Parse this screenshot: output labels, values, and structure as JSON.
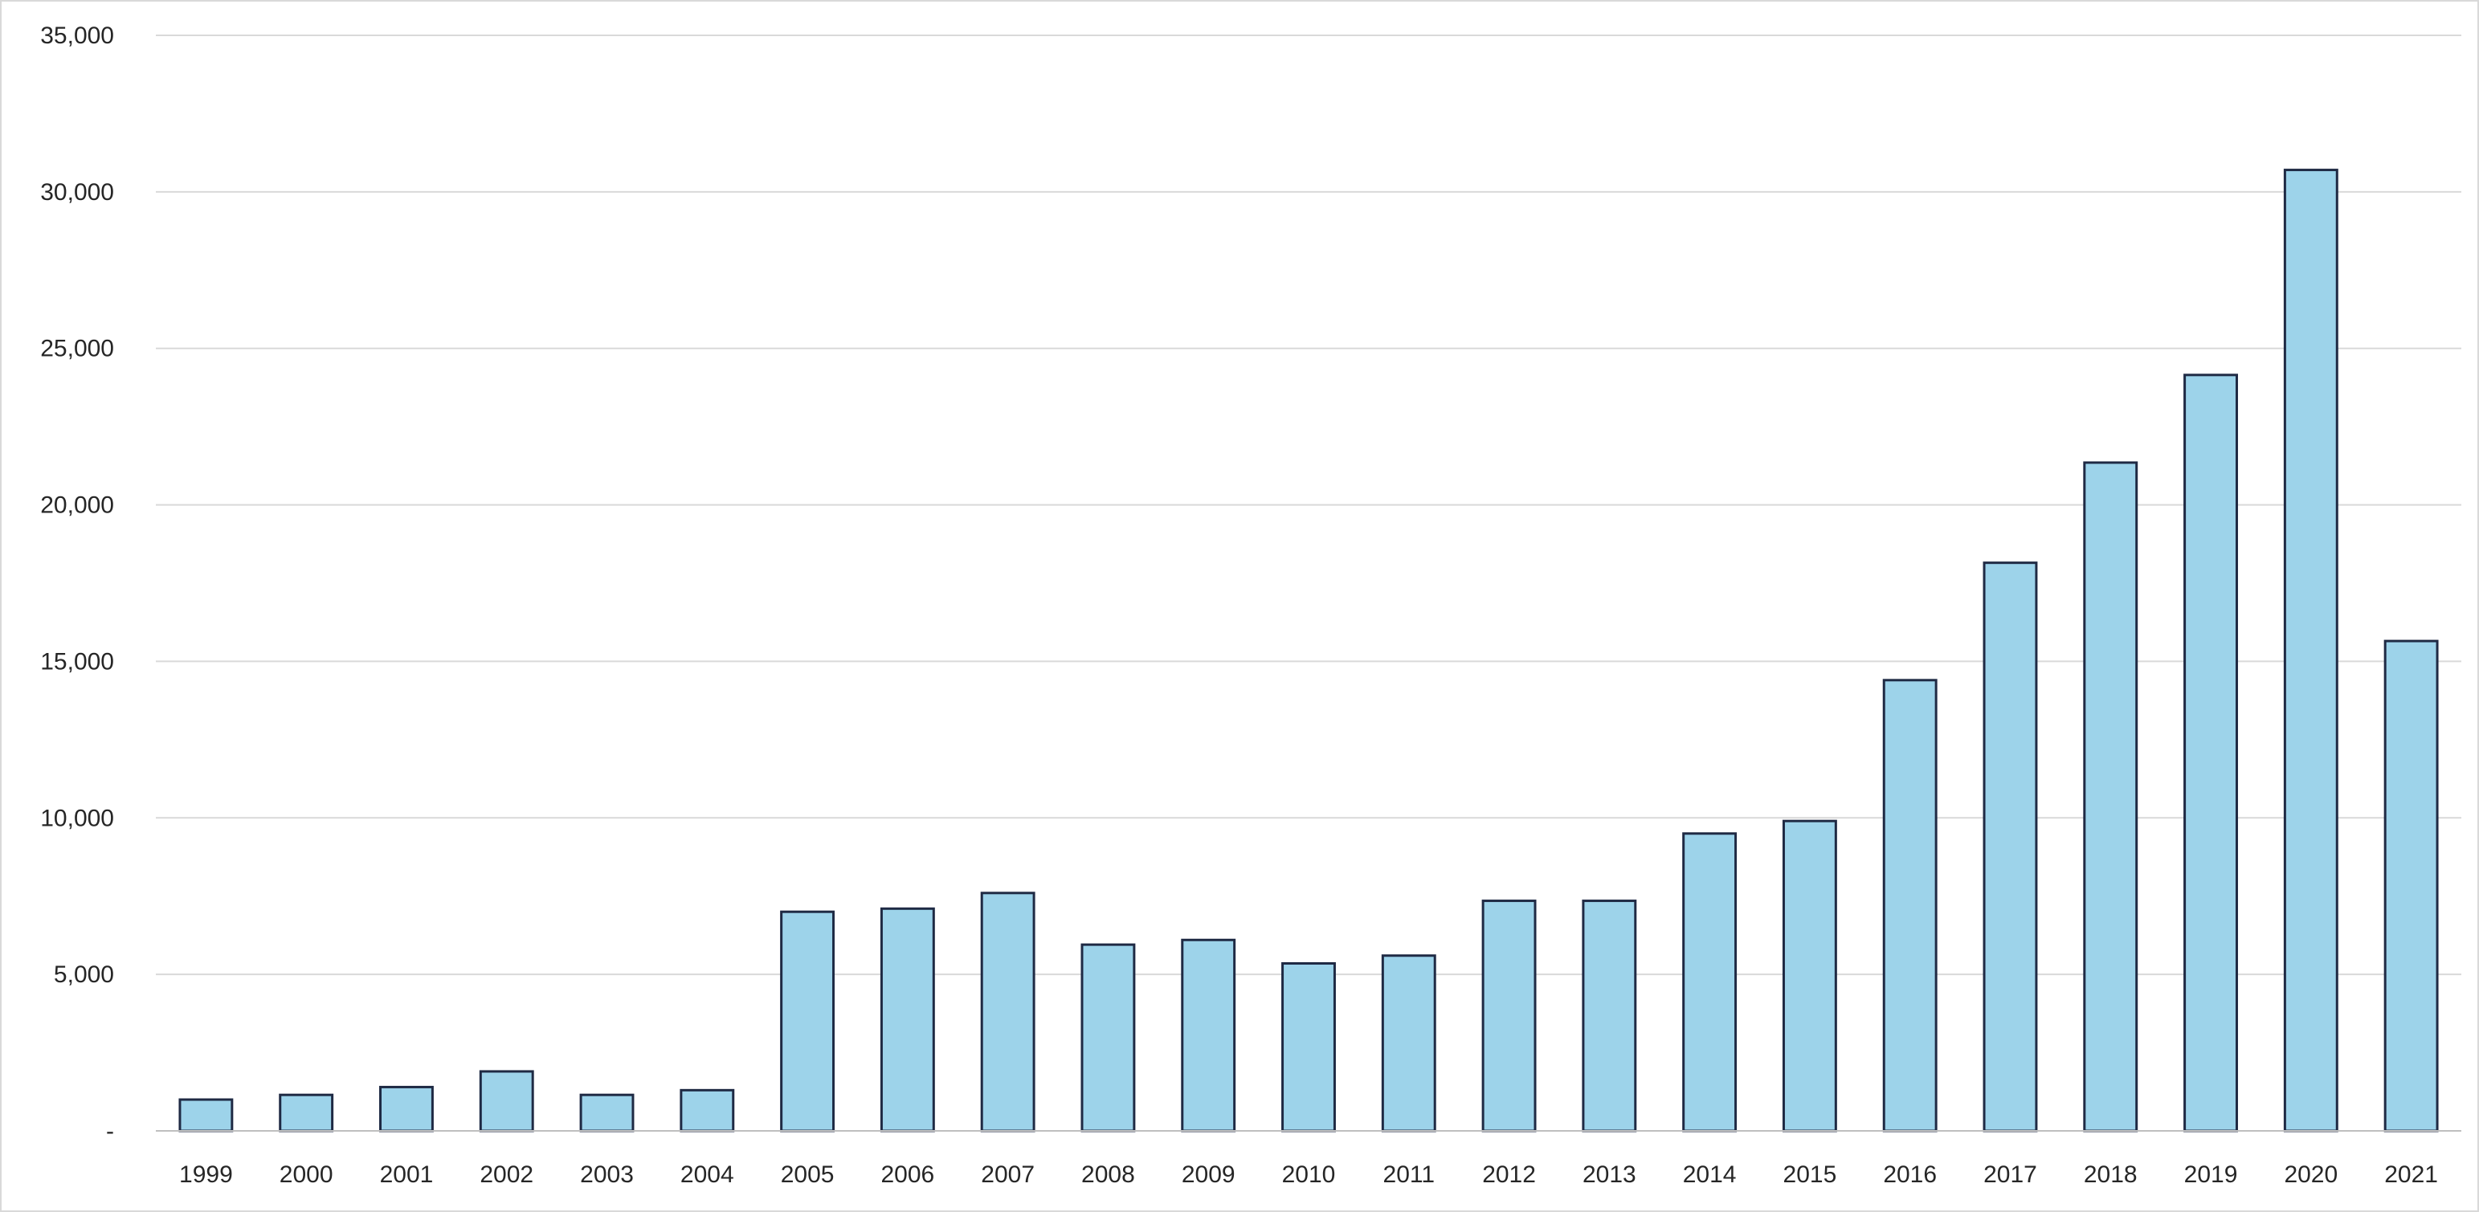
{
  "chart_data": {
    "type": "bar",
    "title": "",
    "xlabel": "",
    "ylabel": "",
    "categories": [
      "1999",
      "2000",
      "2001",
      "2002",
      "2003",
      "2004",
      "2005",
      "2006",
      "2007",
      "2008",
      "2009",
      "2010",
      "2011",
      "2012",
      "2013",
      "2014",
      "2015",
      "2016",
      "2017",
      "2018",
      "2019",
      "2020",
      "2021"
    ],
    "values": [
      1000,
      1150,
      1400,
      1900,
      1150,
      1300,
      7000,
      7100,
      7600,
      5950,
      6100,
      5350,
      5600,
      7350,
      7350,
      9500,
      9900,
      14400,
      18150,
      21350,
      24150,
      30700,
      15650
    ],
    "ylim": [
      0,
      35000
    ],
    "y_ticks": [
      {
        "value": 0,
        "label": "-"
      },
      {
        "value": 5000,
        "label": "5,000"
      },
      {
        "value": 10000,
        "label": "10,000"
      },
      {
        "value": 15000,
        "label": "15,000"
      },
      {
        "value": 20000,
        "label": "20,000"
      },
      {
        "value": 25000,
        "label": "25,000"
      },
      {
        "value": 30000,
        "label": "30,000"
      },
      {
        "value": 35000,
        "label": "35,000"
      }
    ],
    "grid": true,
    "legend": "none",
    "bar_color": "#9dd3ea",
    "bar_edge_color": "#1f2a44"
  }
}
